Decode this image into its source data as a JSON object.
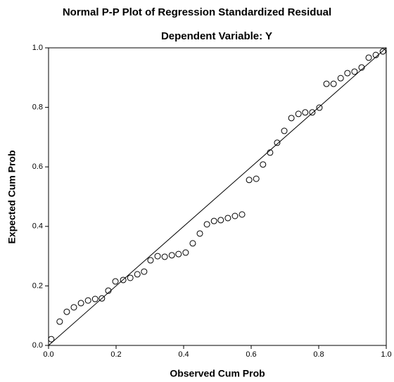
{
  "chart_data": {
    "type": "scatter",
    "title": "Normal P-P Plot of Regression Standardized Residual",
    "subtitle": "Dependent Variable: Y",
    "x_label": "Observed Cum Prob",
    "y_label": "Expected Cum Prob",
    "x": [
      0.008,
      0.033,
      0.054,
      0.075,
      0.096,
      0.117,
      0.138,
      0.158,
      0.177,
      0.198,
      0.221,
      0.242,
      0.263,
      0.283,
      0.302,
      0.323,
      0.344,
      0.365,
      0.385,
      0.406,
      0.427,
      0.448,
      0.469,
      0.49,
      0.51,
      0.531,
      0.552,
      0.573,
      0.594,
      0.615,
      0.635,
      0.656,
      0.677,
      0.698,
      0.719,
      0.74,
      0.76,
      0.781,
      0.802,
      0.823,
      0.844,
      0.865,
      0.885,
      0.906,
      0.927,
      0.948,
      0.969,
      0.99
    ],
    "values": [
      0.021,
      0.08,
      0.113,
      0.128,
      0.142,
      0.151,
      0.156,
      0.158,
      0.184,
      0.215,
      0.22,
      0.227,
      0.239,
      0.248,
      0.286,
      0.3,
      0.298,
      0.303,
      0.307,
      0.312,
      0.343,
      0.376,
      0.407,
      0.418,
      0.421,
      0.428,
      0.435,
      0.44,
      0.556,
      0.56,
      0.608,
      0.648,
      0.681,
      0.721,
      0.764,
      0.778,
      0.783,
      0.783,
      0.799,
      0.879,
      0.879,
      0.898,
      0.915,
      0.92,
      0.934,
      0.967,
      0.976,
      0.988
    ],
    "xlim": [
      0,
      1
    ],
    "ylim": [
      0,
      1
    ],
    "xticks": [
      {
        "value": 0,
        "label": "0.0"
      },
      0.2,
      0.4,
      0.6,
      0.8,
      {
        "value": 1,
        "label": "1.0"
      }
    ],
    "yticks": [
      {
        "value": 0,
        "label": "0.0"
      },
      0.2,
      0.4,
      0.6,
      0.8,
      {
        "value": 1,
        "label": "1.0"
      }
    ],
    "color": "#000000",
    "reference_line": true
  }
}
